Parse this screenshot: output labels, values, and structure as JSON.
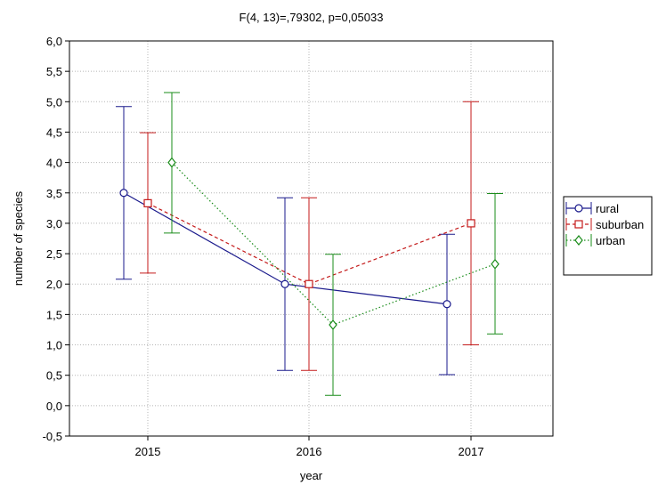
{
  "chart_data": {
    "type": "line",
    "title": "F(4, 13)=,79302, p=0,05033",
    "xlabel": "year",
    "ylabel": "number of species",
    "categories": [
      "2015",
      "2016",
      "2017"
    ],
    "ylim": [
      -0.5,
      6.0
    ],
    "yticks": [
      "-0,5",
      "0,0",
      "0,5",
      "1,0",
      "1,5",
      "2,0",
      "2,5",
      "3,0",
      "3,5",
      "4,0",
      "4,5",
      "5,0",
      "5,5",
      "6,0"
    ],
    "grid": true,
    "legend_position": "right",
    "series": [
      {
        "name": "rural",
        "color": "#1a1a8c",
        "marker": "circle",
        "line_style": "solid",
        "values": [
          3.5,
          2.0,
          1.67
        ],
        "error_low": [
          2.08,
          0.58,
          0.51
        ],
        "error_high": [
          4.92,
          3.42,
          2.82
        ]
      },
      {
        "name": "suburban",
        "color": "#c41a1a",
        "marker": "square",
        "line_style": "dashed",
        "values": [
          3.33,
          2.0,
          3.0
        ],
        "error_low": [
          2.18,
          0.58,
          1.0
        ],
        "error_high": [
          4.49,
          3.42,
          5.0
        ]
      },
      {
        "name": "urban",
        "color": "#1a8c1a",
        "marker": "diamond",
        "line_style": "dotted",
        "values": [
          4.0,
          1.33,
          2.33
        ],
        "error_low": [
          2.84,
          0.17,
          1.18
        ],
        "error_high": [
          5.15,
          2.49,
          3.49
        ]
      }
    ]
  }
}
